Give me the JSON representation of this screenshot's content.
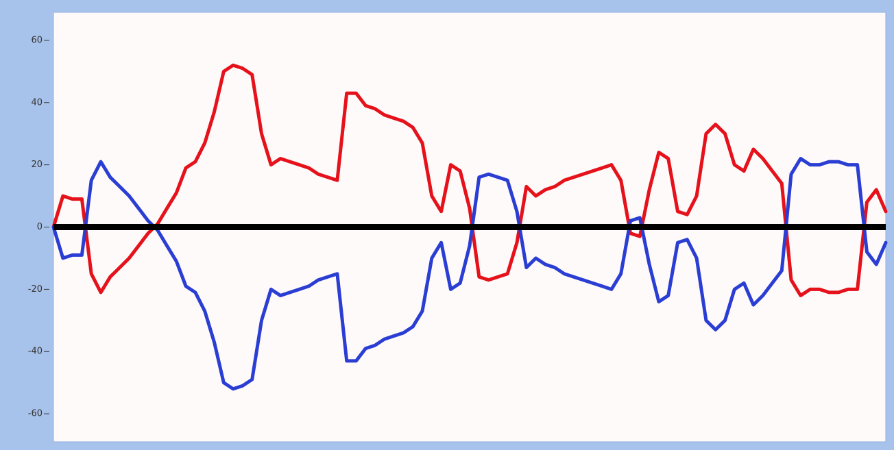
{
  "chart_data": {
    "type": "line",
    "categories": [
      null,
      null,
      null,
      null,
      null,
      null,
      null,
      null,
      null,
      null,
      null,
      null,
      null,
      null,
      null,
      null,
      null,
      null,
      null,
      null,
      null,
      null,
      null,
      null,
      null,
      null,
      null,
      null,
      null,
      null,
      null,
      null,
      null,
      null,
      null,
      null,
      null,
      null,
      null,
      null,
      null,
      null,
      null,
      null,
      null,
      null,
      null,
      null,
      null,
      null,
      null,
      null,
      null,
      null,
      null,
      null,
      null,
      null,
      null,
      null,
      null,
      null,
      null,
      null,
      null,
      null,
      null,
      null,
      null,
      null,
      null,
      null,
      null,
      null,
      null,
      null,
      null,
      null,
      null,
      null,
      null,
      null,
      null,
      null,
      null,
      null,
      null,
      null,
      null
    ],
    "series": [
      {
        "color": "#e5121b",
        "values": [
          0,
          10,
          9,
          9,
          -15,
          -21,
          -16,
          -13,
          -10,
          -6,
          -2,
          1,
          6,
          11,
          19,
          21,
          27,
          37,
          50,
          52,
          51,
          49,
          30,
          20,
          22,
          21,
          20,
          19,
          17,
          16,
          15,
          43,
          43,
          39,
          38,
          36,
          35,
          34,
          32,
          27,
          10,
          5,
          20,
          18,
          6,
          -16,
          -17,
          -16,
          -15,
          -5,
          13,
          10,
          12,
          13,
          15,
          16,
          17,
          18,
          19,
          20,
          15,
          -2,
          -3,
          12,
          24,
          22,
          5,
          4,
          10,
          30,
          33,
          30,
          20,
          18,
          25,
          22,
          18,
          14,
          -17,
          -22,
          -20,
          -20,
          -21,
          -21,
          -20,
          -20,
          8,
          12,
          5
        ]
      },
      {
        "color": "#2b3ed3",
        "values": [
          0,
          -10,
          -9,
          -9,
          15,
          21,
          16,
          13,
          10,
          6,
          2,
          -1,
          -6,
          -11,
          -19,
          -21,
          -27,
          -37,
          -50,
          -52,
          -51,
          -49,
          -30,
          -20,
          -22,
          -21,
          -20,
          -19,
          -17,
          -16,
          -15,
          -43,
          -43,
          -39,
          -38,
          -36,
          -35,
          -34,
          -32,
          -27,
          -10,
          -5,
          -20,
          -18,
          -6,
          16,
          17,
          16,
          15,
          5,
          -13,
          -10,
          -12,
          -13,
          -15,
          -16,
          -17,
          -18,
          -19,
          -20,
          -15,
          2,
          3,
          -12,
          -24,
          -22,
          -5,
          -4,
          -10,
          -30,
          -33,
          -30,
          -20,
          -18,
          -25,
          -22,
          -18,
          -14,
          17,
          22,
          20,
          20,
          21,
          21,
          20,
          20,
          -8,
          -12,
          -5
        ]
      }
    ],
    "hline": 0,
    "ylim": [
      -69,
      69
    ],
    "yticks": [
      -60,
      -40,
      -20,
      0,
      20,
      40,
      60
    ]
  }
}
